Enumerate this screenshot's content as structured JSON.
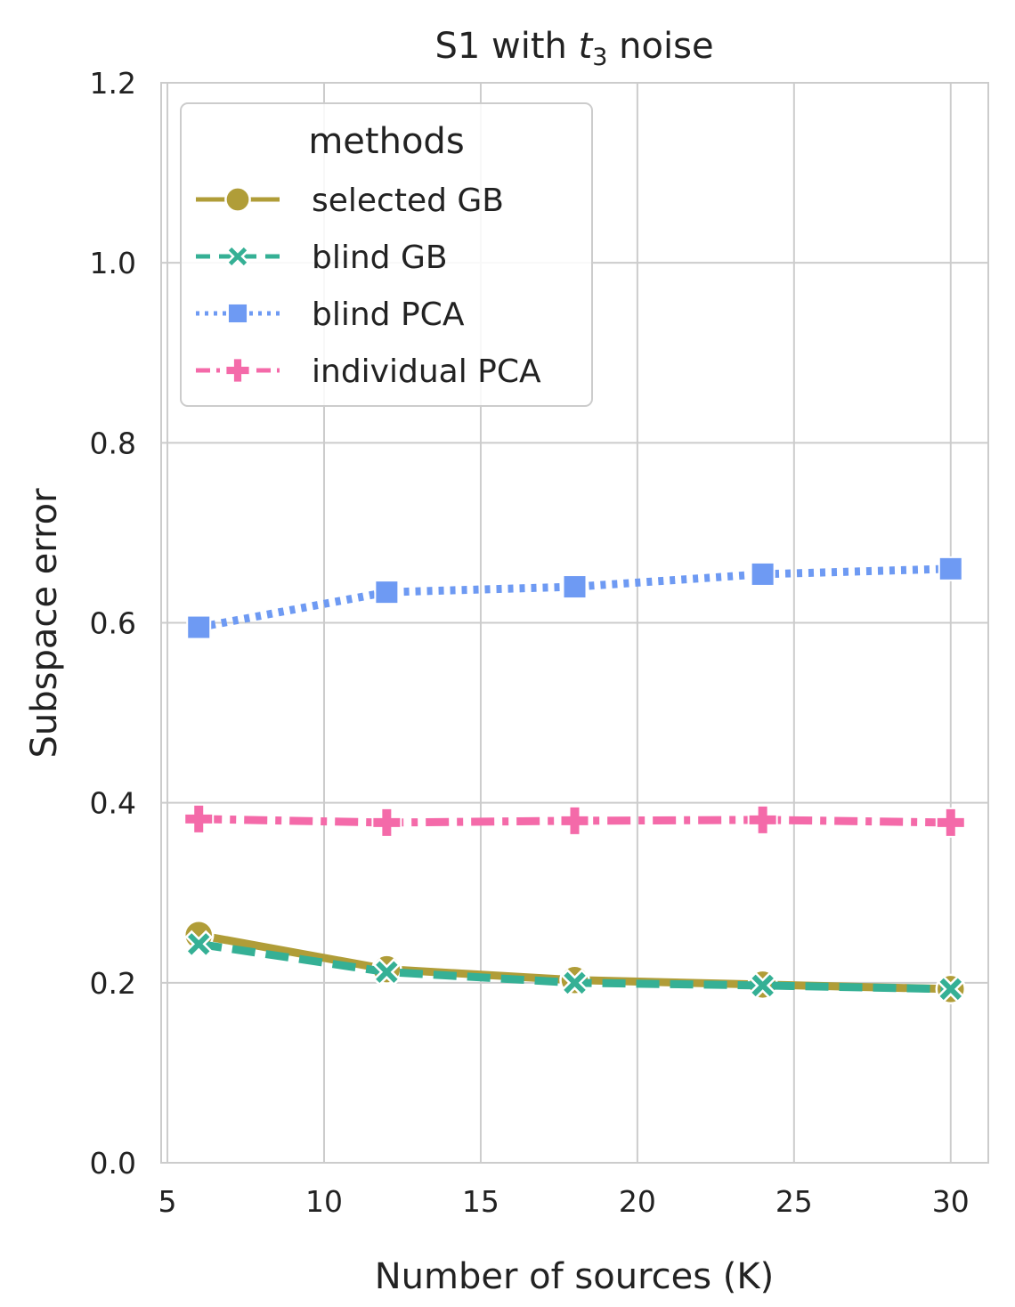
{
  "chart_data": {
    "type": "line",
    "title": "S1 with t3 noise",
    "title_parts": {
      "prefix": "S1 with ",
      "math_var": "t",
      "subscript": "3",
      "suffix": " noise"
    },
    "xlabel": "Number of sources (K)",
    "ylabel": "Subspace error",
    "xlim": [
      4.8,
      31.2
    ],
    "ylim": [
      0.0,
      1.2
    ],
    "xticks": [
      5,
      10,
      15,
      20,
      25,
      30
    ],
    "yticks": [
      0.0,
      0.2,
      0.4,
      0.6,
      0.8,
      1.0,
      1.2
    ],
    "ytick_labels": [
      "0.0",
      "0.2",
      "0.4",
      "0.6",
      "0.8",
      "1.0",
      "1.2"
    ],
    "x": [
      6,
      12,
      18,
      24,
      30
    ],
    "grid": true,
    "legend": {
      "title": "methods",
      "position": "top-left"
    },
    "series": [
      {
        "name": "selected GB",
        "color": "#b09d38",
        "line_style": "solid",
        "marker": "circle",
        "values": [
          0.253,
          0.215,
          0.203,
          0.198,
          0.193
        ]
      },
      {
        "name": "blind GB",
        "color": "#35b095",
        "line_style": "dashed",
        "marker": "x",
        "values": [
          0.243,
          0.212,
          0.2,
          0.197,
          0.193
        ]
      },
      {
        "name": "blind PCA",
        "color": "#6e9af3",
        "line_style": "dotted",
        "marker": "square",
        "values": [
          0.595,
          0.634,
          0.64,
          0.654,
          0.66
        ]
      },
      {
        "name": "individual PCA",
        "color": "#f46aa9",
        "line_style": "dash-dot",
        "marker": "plus",
        "values": [
          0.382,
          0.378,
          0.38,
          0.381,
          0.378
        ]
      }
    ]
  }
}
